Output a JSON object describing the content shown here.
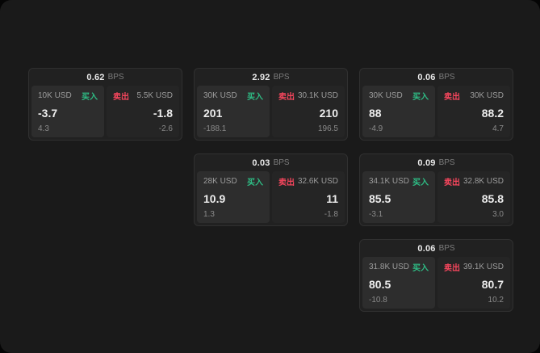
{
  "bps_unit": "BPS",
  "actions": {
    "buy": "买入",
    "sell": "卖出"
  },
  "colors": {
    "buy": "#2ebd85",
    "sell": "#f6465d",
    "surface": "#1a1a1a",
    "card": "#212121"
  },
  "cards": [
    {
      "bps": "0.62",
      "buy": {
        "amount": "10K USD",
        "price": "-3.7",
        "sub": "4.3"
      },
      "sell": {
        "amount": "5.5K USD",
        "price": "-1.8",
        "sub": "-2.6"
      }
    },
    {
      "bps": "2.92",
      "buy": {
        "amount": "30K USD",
        "price": "201",
        "sub": "-188.1"
      },
      "sell": {
        "amount": "30.1K USD",
        "price": "210",
        "sub": "196.5"
      }
    },
    {
      "bps": "0.06",
      "buy": {
        "amount": "30K USD",
        "price": "88",
        "sub": "-4.9"
      },
      "sell": {
        "amount": "30K USD",
        "price": "88.2",
        "sub": "4.7"
      }
    },
    {
      "bps": "0.03",
      "buy": {
        "amount": "28K USD",
        "price": "10.9",
        "sub": "1.3"
      },
      "sell": {
        "amount": "32.6K USD",
        "price": "11",
        "sub": "-1.8"
      }
    },
    {
      "bps": "0.09",
      "buy": {
        "amount": "34.1K USD",
        "price": "85.5",
        "sub": "-3.1"
      },
      "sell": {
        "amount": "32.8K USD",
        "price": "85.8",
        "sub": "3.0"
      }
    },
    {
      "bps": "0.06",
      "buy": {
        "amount": "31.8K USD",
        "price": "80.5",
        "sub": "-10.8"
      },
      "sell": {
        "amount": "39.1K USD",
        "price": "80.7",
        "sub": "10.2"
      }
    }
  ]
}
